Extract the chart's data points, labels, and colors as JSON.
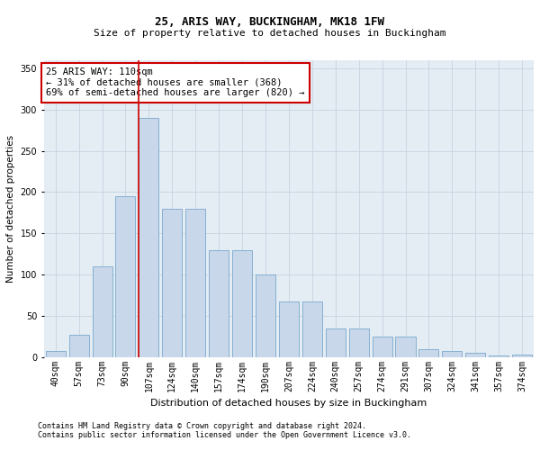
{
  "title1": "25, ARIS WAY, BUCKINGHAM, MK18 1FW",
  "title2": "Size of property relative to detached houses in Buckingham",
  "xlabel": "Distribution of detached houses by size in Buckingham",
  "ylabel": "Number of detached properties",
  "categories": [
    "40sqm",
    "57sqm",
    "73sqm",
    "90sqm",
    "107sqm",
    "124sqm",
    "140sqm",
    "157sqm",
    "174sqm",
    "190sqm",
    "207sqm",
    "224sqm",
    "240sqm",
    "257sqm",
    "274sqm",
    "291sqm",
    "307sqm",
    "324sqm",
    "341sqm",
    "357sqm",
    "374sqm"
  ],
  "values": [
    7,
    27,
    110,
    195,
    290,
    180,
    180,
    130,
    130,
    100,
    67,
    67,
    35,
    35,
    25,
    25,
    10,
    7,
    5,
    2,
    3
  ],
  "bar_color": "#c8d8ea",
  "bar_edge_color": "#7aa8cc",
  "grid_color": "#c8d4e2",
  "background_color": "#e4ecf4",
  "red_line_index": 4,
  "red_line_color": "#cc0000",
  "annotation_text": "25 ARIS WAY: 110sqm\n← 31% of detached houses are smaller (368)\n69% of semi-detached houses are larger (820) →",
  "annotation_box_color": "#ffffff",
  "annotation_border_color": "#cc0000",
  "footnote1": "Contains HM Land Registry data © Crown copyright and database right 2024.",
  "footnote2": "Contains public sector information licensed under the Open Government Licence v3.0.",
  "ylim": [
    0,
    360
  ],
  "yticks": [
    0,
    50,
    100,
    150,
    200,
    250,
    300,
    350
  ],
  "title1_fontsize": 9,
  "title2_fontsize": 8,
  "xlabel_fontsize": 8,
  "ylabel_fontsize": 7.5,
  "tick_fontsize": 7,
  "annotation_fontsize": 7.5,
  "footnote_fontsize": 6
}
